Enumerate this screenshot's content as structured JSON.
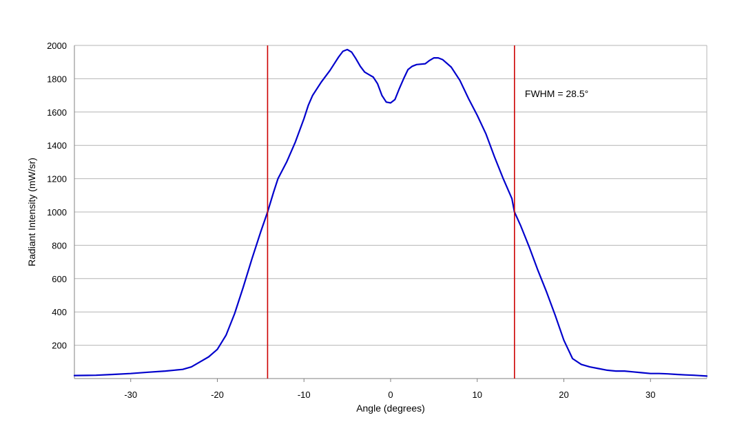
{
  "chart_data": {
    "type": "line",
    "title": "",
    "xlabel": "Angle (degrees)",
    "ylabel": "Radiant Intensity (mW/sr)",
    "xlim": [
      -36.5,
      36.5
    ],
    "ylim": [
      0,
      2000
    ],
    "xticks": [
      -30,
      -20,
      -10,
      0,
      10,
      20,
      30
    ],
    "yticks": [
      200,
      400,
      600,
      800,
      1000,
      1200,
      1400,
      1600,
      1800,
      2000
    ],
    "grid": "horizontal",
    "series": [
      {
        "color": "#0000cc",
        "x": [
          -36.5,
          -34,
          -32,
          -30,
          -28,
          -26,
          -24,
          -23,
          -22,
          -21,
          -20,
          -19,
          -18,
          -17,
          -16,
          -15,
          -14.2,
          -13.5,
          -13,
          -12,
          -11,
          -10,
          -9.5,
          -9,
          -8,
          -7,
          -6,
          -5.5,
          -5,
          -4.5,
          -4,
          -3.5,
          -3,
          -2.5,
          -2,
          -1.5,
          -1,
          -0.5,
          0,
          0.5,
          1,
          1.5,
          2,
          2.5,
          3,
          4,
          4.5,
          5,
          5.5,
          6,
          7,
          8,
          9,
          10,
          11,
          12,
          13,
          14,
          14.3,
          15,
          16,
          17,
          18,
          19,
          20,
          21,
          22,
          23,
          24,
          25,
          26,
          27,
          28,
          29,
          30,
          31,
          32,
          33,
          34,
          35,
          36.5
        ],
        "y": [
          18,
          20,
          25,
          30,
          38,
          45,
          55,
          70,
          100,
          130,
          175,
          260,
          390,
          550,
          720,
          880,
          1000,
          1120,
          1200,
          1300,
          1420,
          1560,
          1640,
          1700,
          1780,
          1850,
          1930,
          1965,
          1975,
          1960,
          1920,
          1875,
          1840,
          1825,
          1810,
          1770,
          1700,
          1660,
          1655,
          1675,
          1740,
          1800,
          1855,
          1875,
          1885,
          1890,
          1910,
          1925,
          1925,
          1915,
          1870,
          1790,
          1680,
          1580,
          1470,
          1330,
          1200,
          1080,
          1000,
          920,
          790,
          650,
          520,
          380,
          230,
          120,
          85,
          70,
          60,
          50,
          45,
          45,
          40,
          35,
          30,
          30,
          28,
          25,
          22,
          20,
          15
        ]
      }
    ],
    "vlines": [
      {
        "x": -14.2,
        "color": "#cc0000"
      },
      {
        "x": 14.3,
        "color": "#cc0000"
      }
    ],
    "annotations": [
      {
        "text": "FWHM = 28.5°",
        "x": 15.5,
        "y": 1690
      }
    ]
  }
}
